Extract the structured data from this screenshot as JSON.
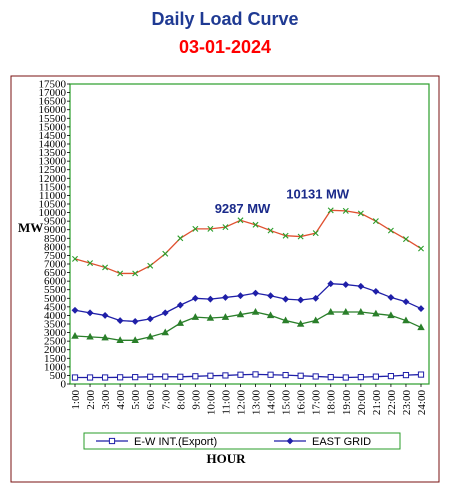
{
  "header": {
    "title": "Daily Load Curve",
    "date": "03-01-2024",
    "title_color": "#1f3a93",
    "date_color": "#ff0000"
  },
  "chart_data": {
    "type": "line",
    "title": "Daily Load Curve",
    "subtitle": "03-01-2024",
    "xlabel": "HOUR",
    "ylabel": "MW",
    "ylim": [
      0,
      17500
    ],
    "yticks": [
      0,
      500,
      1000,
      1500,
      2000,
      2500,
      3000,
      3500,
      4000,
      4500,
      5000,
      5500,
      6000,
      6500,
      7000,
      7500,
      8000,
      8500,
      9000,
      9500,
      10000,
      10500,
      11000,
      11500,
      12000,
      12500,
      13000,
      13500,
      14000,
      14500,
      15000,
      15500,
      16000,
      16500,
      17000,
      17500
    ],
    "x": [
      "1:00",
      "2:00",
      "3:00",
      "4:00",
      "5:00",
      "6:00",
      "7:00",
      "8:00",
      "9:00",
      "10:00",
      "11:00",
      "12:00",
      "13:00",
      "14:00",
      "15:00",
      "16:00",
      "17:00",
      "18:00",
      "19:00",
      "20:00",
      "21:00",
      "22:00",
      "23:00",
      "24:00"
    ],
    "grid": false,
    "legend_position": "bottom",
    "series": [
      {
        "name": "E-W INT.(Export)",
        "color": "#1f1fa8",
        "marker": "square",
        "values": [
          380,
          380,
          380,
          390,
          400,
          420,
          430,
          420,
          450,
          480,
          500,
          540,
          560,
          540,
          520,
          480,
          440,
          400,
          380,
          400,
          430,
          460,
          520,
          550
        ]
      },
      {
        "name": "EAST GRID",
        "color": "#1f1fa8",
        "marker": "diamond",
        "values": [
          4300,
          4150,
          4000,
          3700,
          3650,
          3800,
          4150,
          4600,
          5000,
          4950,
          5050,
          5150,
          5300,
          5150,
          4950,
          4900,
          5000,
          5850,
          5800,
          5700,
          5400,
          5050,
          4800,
          4400
        ]
      },
      {
        "name": "",
        "color": "#2a7f2a",
        "marker": "triangle",
        "values": [
          2800,
          2750,
          2700,
          2550,
          2550,
          2750,
          3000,
          3550,
          3900,
          3850,
          3900,
          4050,
          4200,
          4000,
          3700,
          3500,
          3700,
          4200,
          4200,
          4200,
          4100,
          4000,
          3700,
          3300
        ]
      },
      {
        "name": "",
        "color": "#e05030",
        "marker": "cross",
        "values": [
          7300,
          7050,
          6800,
          6450,
          6450,
          6900,
          7600,
          8500,
          9050,
          9050,
          9150,
          9550,
          9287,
          8950,
          8650,
          8600,
          8800,
          10131,
          10100,
          9950,
          9500,
          8950,
          8450,
          7900
        ]
      }
    ],
    "annotations": [
      {
        "text": "9287 MW",
        "x": "13:00",
        "y": 9287
      },
      {
        "text": "10131 MW",
        "x": "18:00",
        "y": 10131
      }
    ]
  }
}
